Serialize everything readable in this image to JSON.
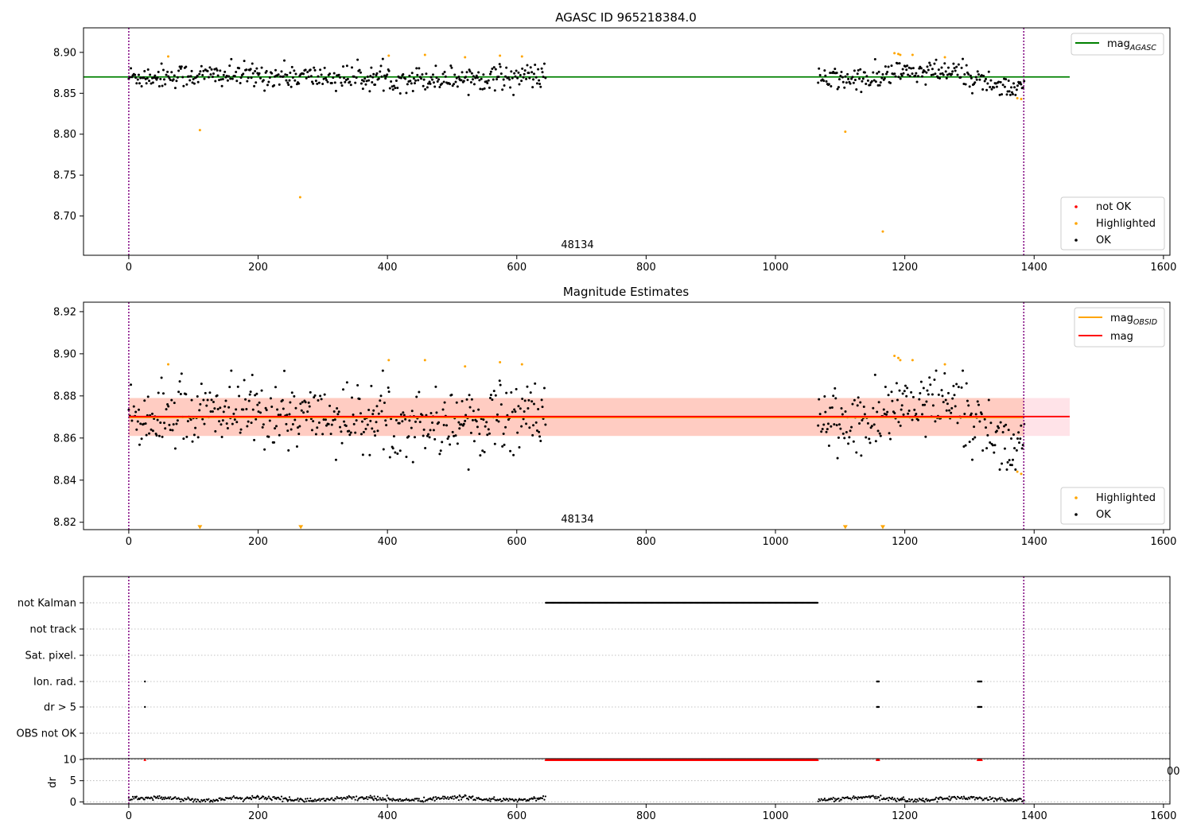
{
  "chart_data": [
    {
      "type": "scatter",
      "title": "AGASC ID 965218384.0",
      "xlim": [
        -70,
        1610
      ],
      "ylim": [
        8.652,
        8.93
      ],
      "xticks": [
        0,
        200,
        400,
        600,
        800,
        1000,
        1200,
        1400,
        1600
      ],
      "yticks": [
        8.7,
        8.75,
        8.8,
        8.85,
        8.9
      ],
      "annotation": "48134",
      "vlines": [
        0,
        1384
      ],
      "hlines": [
        {
          "name": "mag_AGASC",
          "y": 8.87,
          "x_end": 1455,
          "color": "#008000"
        }
      ],
      "series": [
        {
          "name": "not OK",
          "color": "#ff0000",
          "points": []
        },
        {
          "name": "Highlighted",
          "color": "#ffa500",
          "points": [
            [
              61,
              8.895
            ],
            [
              110,
              8.805
            ],
            [
              265,
              8.723
            ],
            [
              402,
              8.896
            ],
            [
              458,
              8.897
            ],
            [
              520,
              8.894
            ],
            [
              574,
              8.896
            ],
            [
              608,
              8.895
            ],
            [
              1108,
              8.803
            ],
            [
              1166,
              8.681
            ],
            [
              1184,
              8.899
            ],
            [
              1190,
              8.898
            ],
            [
              1193,
              8.897
            ],
            [
              1212,
              8.897
            ],
            [
              1262,
              8.894
            ],
            [
              1374,
              8.844
            ],
            [
              1380,
              8.843
            ]
          ]
        },
        {
          "name": "OK",
          "color": "#000000",
          "points": "generated: two observation segments x 0-645 and 1065-1385, y about 8.848-8.892"
        }
      ],
      "legends": [
        {
          "placement": "top-right",
          "entries": [
            {
              "label": "mag",
              "sub": "AGASC",
              "kind": "line",
              "color": "#008000"
            }
          ]
        },
        {
          "placement": "lower-right",
          "entries": [
            {
              "label": "not OK",
              "kind": "dot",
              "color": "#ff0000"
            },
            {
              "label": "Highlighted",
              "kind": "dot",
              "color": "#ffa500"
            },
            {
              "label": "OK",
              "kind": "dot",
              "color": "#000000"
            }
          ]
        }
      ]
    },
    {
      "type": "scatter",
      "title": "Magnitude Estimates",
      "xlim": [
        -70,
        1610
      ],
      "ylim": [
        8.8165,
        8.9245
      ],
      "xticks": [
        0,
        200,
        400,
        600,
        800,
        1000,
        1200,
        1400,
        1600
      ],
      "yticks": [
        8.82,
        8.84,
        8.86,
        8.88,
        8.9,
        8.92
      ],
      "annotation": "48134",
      "vlines": [
        0,
        1384
      ],
      "bands": [
        {
          "y0": 8.861,
          "y1": 8.879,
          "x0": 0,
          "x1": 1384,
          "color": "#ffa07a"
        },
        {
          "y0": 8.861,
          "y1": 8.879,
          "x0": -0.1,
          "x1": 1455,
          "color": "#ffc0cb"
        }
      ],
      "hlines": [
        {
          "name": "mag_OBSID",
          "y": 8.8698,
          "x0": 0,
          "x_end": 1384,
          "color": "#ffa500"
        },
        {
          "name": "mag",
          "y": 8.8702,
          "x0": 0,
          "x_end": 1455,
          "color": "#ff0000"
        }
      ],
      "series": [
        {
          "name": "Highlighted",
          "color": "#ffa500",
          "points": [
            [
              61,
              8.895
            ],
            [
              402,
              8.897
            ],
            [
              458,
              8.897
            ],
            [
              520,
              8.894
            ],
            [
              574,
              8.896
            ],
            [
              608,
              8.895
            ],
            [
              1184,
              8.899
            ],
            [
              1190,
              8.898
            ],
            [
              1193,
              8.897
            ],
            [
              1212,
              8.897
            ],
            [
              1262,
              8.895
            ],
            [
              1374,
              8.844
            ],
            [
              1380,
              8.843
            ]
          ]
        },
        {
          "name": "Highlighted (below axis)",
          "color": "#ffa500",
          "marker": "triangle",
          "points": [
            [
              110,
              8.8175
            ],
            [
              266,
              8.8175
            ],
            [
              1108,
              8.8175
            ],
            [
              1166,
              8.8175
            ]
          ]
        },
        {
          "name": "OK",
          "color": "#000000",
          "points": "generated: two observation segments x 0-645 and 1065-1385, y about 8.845-8.892"
        }
      ],
      "legends": [
        {
          "placement": "top-right",
          "entries": [
            {
              "label": "mag",
              "sub": "OBSID",
              "kind": "line",
              "color": "#ffa500"
            },
            {
              "label": "mag",
              "kind": "line",
              "color": "#ff0000"
            }
          ]
        },
        {
          "placement": "lower-right",
          "entries": [
            {
              "label": "Highlighted",
              "kind": "dot",
              "color": "#ffa500"
            },
            {
              "label": "OK",
              "kind": "dot",
              "color": "#000000"
            }
          ]
        }
      ]
    },
    {
      "type": "scatter",
      "title": "",
      "xlim": [
        -70,
        1610
      ],
      "xticks": [
        0,
        200,
        400,
        600,
        800,
        1000,
        1200,
        1400,
        1600
      ],
      "vlines": [
        0,
        1384
      ],
      "flag_rows": [
        "not Kalman",
        "not track",
        "Sat. pixel.",
        "Ion. rad.",
        "dr > 5",
        "OBS not OK"
      ],
      "flag_ranges": {
        "not Kalman": [
          [
            645,
            1065
          ]
        ],
        "Ion. rad.": [
          [
            25,
            26
          ],
          [
            1157,
            1160
          ],
          [
            1313,
            1320
          ]
        ],
        "dr > 5": [
          [
            25,
            26
          ],
          [
            1157,
            1160
          ],
          [
            1313,
            1320
          ]
        ]
      },
      "dr_panel": {
        "ylabel": "dr",
        "ylim": [
          -0.5,
          10.2
        ],
        "yticks": [
          0,
          5,
          10
        ],
        "clip_ranges": [
          [
            25,
            26
          ],
          [
            645,
            1065
          ],
          [
            1157,
            1160
          ],
          [
            1313,
            1320
          ]
        ],
        "clip_value": 10,
        "clip_color": "#ff0000",
        "partial_tick_label": "00"
      }
    }
  ]
}
